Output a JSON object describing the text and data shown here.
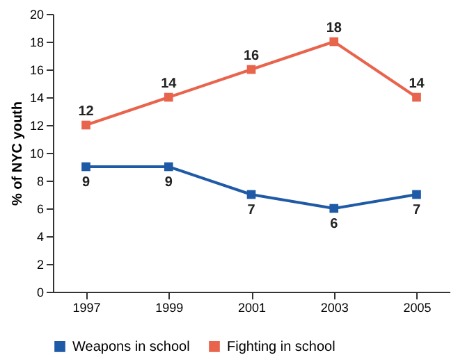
{
  "chart_data": {
    "type": "line",
    "ylabel": "% of NYC youth",
    "categories": [
      "1997",
      "1999",
      "2001",
      "2003",
      "2005"
    ],
    "series": [
      {
        "name": "Weapons in school",
        "color": "#1f5aa6",
        "values": [
          9,
          9,
          7,
          6,
          7
        ]
      },
      {
        "name": "Fighting in school",
        "color": "#e8644c",
        "values": [
          12,
          14,
          16,
          18,
          14
        ]
      }
    ],
    "ylim": [
      0,
      20
    ],
    "yticks": [
      0,
      2,
      4,
      6,
      8,
      10,
      12,
      14,
      16,
      18,
      20
    ],
    "grid": false,
    "legend": "bottom",
    "marker": "square",
    "line_style": "solid",
    "data_labels": true
  }
}
